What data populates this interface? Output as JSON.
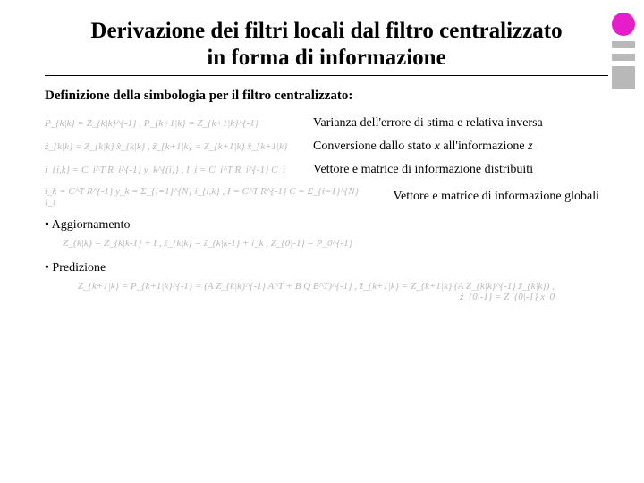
{
  "title": "Derivazione dei filtri locali dal filtro centralizzato in forma di informazione",
  "subheading": "Definizione della simbologia per il filtro centralizzato:",
  "defs": [
    {
      "eq": "P_{k|k} = Z_{k|k}^{-1}   ,   P_{k+1|k} = Z_{k+1|k}^{-1}",
      "desc": "Varianza dell'errore di stima e relativa inversa"
    },
    {
      "eq": "ẑ_{k|k} = Z_{k|k} x̂_{k|k}   ,   ẑ_{k+1|k} = Z_{k+1|k} x̂_{k+1|k}",
      "desc_pre": "Conversione dallo stato ",
      "desc_x": "x",
      "desc_mid": " all'informazione ",
      "desc_z": "z"
    },
    {
      "eq": "i_{i,k} = C_i^T R_i^{-1} y_k^{(i)}   ,   I_i = C_i^T R_i^{-1} C_i",
      "desc": "Vettore e matrice di informazione distribuiti"
    },
    {
      "eq": "i_k = C^T R^{-1} y_k = Σ_{i=1}^{N} i_{i,k}   ,   I = C^T R^{-1} C = Σ_{i=1}^{N} I_i",
      "desc": "Vettore e matrice di informazione globali"
    }
  ],
  "bullet1": "• Aggiornamento",
  "eq_update": "Z_{k|k} = Z_{k|k-1} + I   ,   ẑ_{k|k} = ẑ_{k|k-1} + i_k   ,   Z_{0|-1} = P_0^{-1}",
  "bullet2": "• Predizione",
  "eq_predict": "Z_{k+1|k} = P_{k+1|k}^{-1} = (A Z_{k|k}^{-1} A^T + B Q B^T)^{-1}   ,   ẑ_{k+1|k} = Z_{k+1|k} (A Z_{k|k}^{-1} ẑ_{k|k})   ,   ẑ_{0|-1} = Z_{0|-1} x_0",
  "colors": {
    "accent": "#e61eca",
    "gray": "#b8b8b8",
    "text": "#000000",
    "bg": "#ffffff"
  }
}
